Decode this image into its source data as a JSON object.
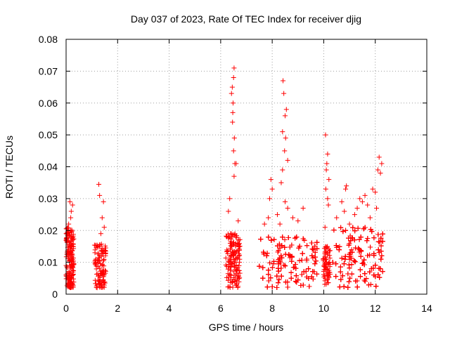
{
  "chart_data": {
    "type": "scatter",
    "title": "Day 037 of 2023, Rate Of TEC Index for receiver djig",
    "xlabel": "GPS time / hours",
    "ylabel": "ROTI / TECUs",
    "xlim": [
      0,
      14
    ],
    "ylim": [
      0,
      0.08
    ],
    "xticks": [
      0,
      2,
      4,
      6,
      8,
      10,
      12,
      14
    ],
    "xtick_labels": [
      "0",
      "2",
      "4",
      "6",
      "8",
      "10",
      "12",
      "14"
    ],
    "yticks": [
      0,
      0.01,
      0.02,
      0.03,
      0.04,
      0.05,
      0.06,
      0.07,
      0.08
    ],
    "ytick_labels": [
      "0",
      "0.01",
      "0.02",
      "0.03",
      "0.04",
      "0.05",
      "0.06",
      "0.07",
      "0.08"
    ],
    "grid": true,
    "marker": "+",
    "marker_color": "#ff0000",
    "series": [
      {
        "name": "ROTI",
        "clusters": [
          {
            "x_start": 0.0,
            "x_end": 0.3,
            "y_min": 0.002,
            "y_max": 0.021,
            "n": 170,
            "peaks": [
              [
                0.15,
                0.029
              ],
              [
                0.2,
                0.026
              ],
              [
                0.25,
                0.028
              ],
              [
                0.18,
                0.024
              ],
              [
                0.1,
                0.022
              ]
            ]
          },
          {
            "x_start": 1.1,
            "x_end": 1.55,
            "y_min": 0.002,
            "y_max": 0.016,
            "n": 110,
            "peaks": [
              [
                1.27,
                0.0345
              ],
              [
                1.3,
                0.031
              ],
              [
                1.45,
                0.029
              ],
              [
                1.4,
                0.024
              ],
              [
                1.48,
                0.021
              ],
              [
                1.35,
                0.019
              ]
            ]
          },
          {
            "x_start": 6.2,
            "x_end": 6.75,
            "y_min": 0.002,
            "y_max": 0.019,
            "n": 150,
            "peaks": [
              [
                6.52,
                0.071
              ],
              [
                6.5,
                0.068
              ],
              [
                6.45,
                0.065
              ],
              [
                6.42,
                0.063
              ],
              [
                6.48,
                0.06
              ],
              [
                6.47,
                0.057
              ],
              [
                6.46,
                0.054
              ],
              [
                6.53,
                0.049
              ],
              [
                6.5,
                0.045
              ],
              [
                6.55,
                0.041
              ],
              [
                6.6,
                0.041
              ],
              [
                6.52,
                0.037
              ],
              [
                6.35,
                0.03
              ],
              [
                6.3,
                0.026
              ],
              [
                6.68,
                0.023
              ],
              [
                6.38,
                0.019
              ]
            ]
          },
          {
            "x_start": 7.5,
            "x_end": 9.75,
            "y_min": 0.002,
            "y_max": 0.018,
            "n": 650,
            "peaks": [
              [
                8.42,
                0.067
              ],
              [
                8.45,
                0.063
              ],
              [
                8.55,
                0.058
              ],
              [
                8.5,
                0.056
              ],
              [
                8.4,
                0.051
              ],
              [
                8.52,
                0.049
              ],
              [
                8.48,
                0.045
              ],
              [
                8.6,
                0.042
              ],
              [
                8.4,
                0.039
              ],
              [
                8.35,
                0.035
              ],
              [
                7.95,
                0.036
              ],
              [
                8.0,
                0.033
              ],
              [
                7.9,
                0.03
              ],
              [
                8.5,
                0.029
              ],
              [
                8.6,
                0.027
              ],
              [
                9.2,
                0.027
              ],
              [
                8.2,
                0.025
              ],
              [
                7.85,
                0.024
              ],
              [
                8.8,
                0.024
              ],
              [
                9.0,
                0.023
              ],
              [
                7.7,
                0.022
              ],
              [
                8.3,
                0.022
              ]
            ]
          },
          {
            "x_start": 9.95,
            "x_end": 10.25,
            "y_min": 0.003,
            "y_max": 0.015,
            "n": 70,
            "peaks": [
              [
                10.07,
                0.05
              ],
              [
                10.15,
                0.044
              ],
              [
                10.12,
                0.041
              ],
              [
                10.1,
                0.039
              ],
              [
                10.2,
                0.036
              ],
              [
                10.08,
                0.033
              ],
              [
                10.15,
                0.03
              ],
              [
                10.05,
                0.021
              ],
              [
                10.18,
                0.028
              ]
            ]
          },
          {
            "x_start": 10.35,
            "x_end": 12.3,
            "y_min": 0.002,
            "y_max": 0.021,
            "n": 650,
            "peaks": [
              [
                12.15,
                0.043
              ],
              [
                12.25,
                0.041
              ],
              [
                12.1,
                0.039
              ],
              [
                12.2,
                0.038
              ],
              [
                11.9,
                0.033
              ],
              [
                12.0,
                0.032
              ],
              [
                11.6,
                0.031
              ],
              [
                10.88,
                0.034
              ],
              [
                10.85,
                0.033
              ],
              [
                11.4,
                0.03
              ],
              [
                11.5,
                0.029
              ],
              [
                10.7,
                0.029
              ],
              [
                10.8,
                0.026
              ],
              [
                11.7,
                0.028
              ],
              [
                11.2,
                0.025
              ],
              [
                11.3,
                0.027
              ],
              [
                12.05,
                0.027
              ],
              [
                10.5,
                0.024
              ],
              [
                11.0,
                0.022
              ],
              [
                11.8,
                0.024
              ]
            ]
          }
        ]
      }
    ]
  }
}
